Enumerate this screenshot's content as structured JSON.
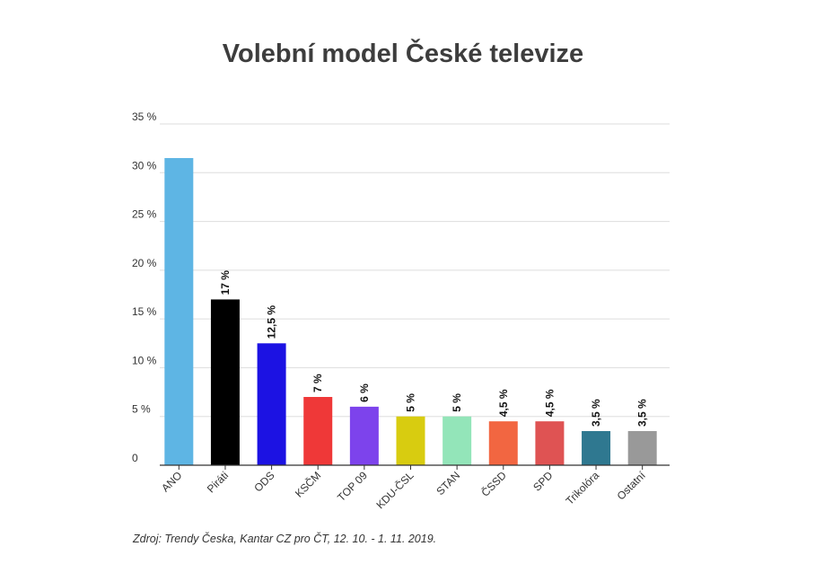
{
  "chart_data": {
    "type": "bar",
    "title": "Volební model České televize",
    "xlabel": "",
    "ylabel": "",
    "ylim": [
      0,
      35
    ],
    "yticks": [
      {
        "value": 0,
        "label": "0"
      },
      {
        "value": 5,
        "label": "5 %"
      },
      {
        "value": 10,
        "label": "10 %"
      },
      {
        "value": 15,
        "label": "15 %"
      },
      {
        "value": 20,
        "label": "20 %"
      },
      {
        "value": 25,
        "label": "25 %"
      },
      {
        "value": 30,
        "label": "30 %"
      },
      {
        "value": 35,
        "label": "35 %"
      }
    ],
    "grid": true,
    "categories": [
      "ANO",
      "Piráti",
      "ODS",
      "KSČM",
      "TOP 09",
      "KDU-ČSL",
      "STAN",
      "ČSSD",
      "SPD",
      "Trikolóra",
      "Ostatní"
    ],
    "values": [
      31.5,
      17,
      12.5,
      7,
      6,
      5,
      5,
      4.5,
      4.5,
      3.5,
      3.5
    ],
    "data_labels": [
      "",
      "17 %",
      "12,5 %",
      "7 %",
      "6 %",
      "5 %",
      "5 %",
      "4,5 %",
      "4,5 %",
      "3,5 %",
      "3,5 %"
    ],
    "colors": [
      "#5eb5e4",
      "#000000",
      "#1c12e3",
      "#ef3838",
      "#7d43ec",
      "#d8cc10",
      "#93e5b9",
      "#f26641",
      "#df5353",
      "#2f7890",
      "#999999"
    ]
  },
  "source": "Zdroj: Trendy Česka, Kantar CZ pro ČT, 12. 10. - 1. 11. 2019."
}
